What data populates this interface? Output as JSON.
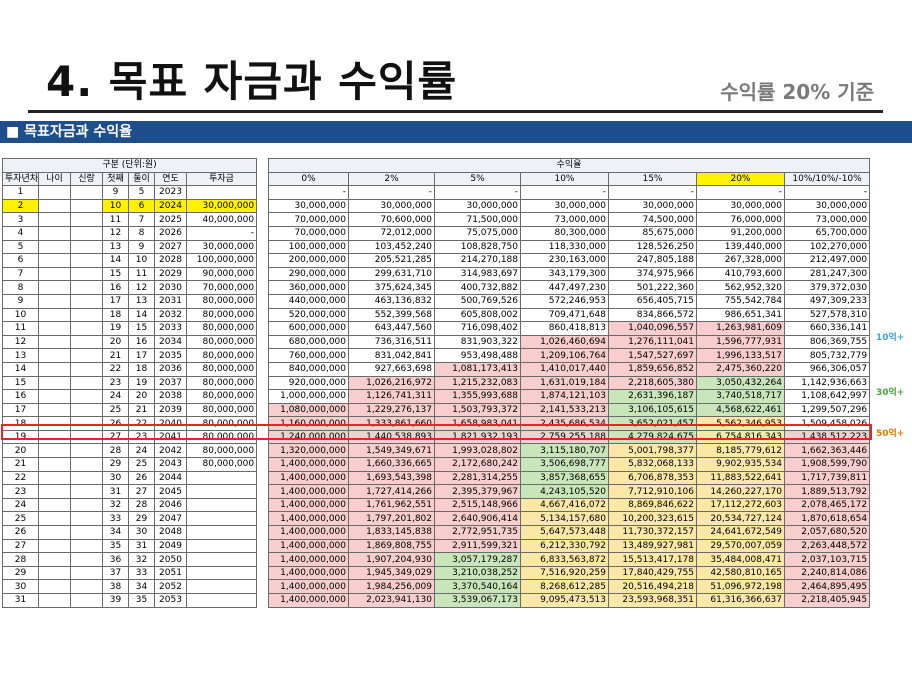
{
  "title": "4. 목표 자금과 수익률",
  "subtitle": "수익률 20% 기준",
  "section": "■ 목표자금과 수익율",
  "left_header": {
    "group": "구분 (단위:원)",
    "cols": [
      "투자년차",
      "나이",
      "신랑",
      "첫째",
      "둘이",
      "연도",
      "투자금"
    ]
  },
  "right_header": {
    "group": "수익율",
    "cols": [
      "0%",
      "2%",
      "5%",
      "10%",
      "15%",
      "20%",
      "10%/10%/-10%"
    ]
  },
  "rows": [
    {
      "n": "1",
      "a": "",
      "b": "",
      "c": "9",
      "d": "5",
      "y": "2023",
      "inv": "",
      "v": [
        "-",
        "-",
        "-",
        "-",
        "-",
        "-",
        "-"
      ]
    },
    {
      "n": "2",
      "a": "",
      "b": "",
      "c": "10",
      "d": "6",
      "y": "2024",
      "inv": "30,000,000",
      "v": [
        "30,000,000",
        "30,000,000",
        "30,000,000",
        "30,000,000",
        "30,000,000",
        "30,000,000",
        "30,000,000"
      ]
    },
    {
      "n": "3",
      "a": "",
      "b": "",
      "c": "11",
      "d": "7",
      "y": "2025",
      "inv": "40,000,000",
      "v": [
        "70,000,000",
        "70,600,000",
        "71,500,000",
        "73,000,000",
        "74,500,000",
        "76,000,000",
        "73,000,000"
      ]
    },
    {
      "n": "4",
      "a": "",
      "b": "",
      "c": "12",
      "d": "8",
      "y": "2026",
      "inv": "-",
      "v": [
        "70,000,000",
        "72,012,000",
        "75,075,000",
        "80,300,000",
        "85,675,000",
        "91,200,000",
        "65,700,000"
      ]
    },
    {
      "n": "5",
      "a": "",
      "b": "",
      "c": "13",
      "d": "9",
      "y": "2027",
      "inv": "30,000,000",
      "v": [
        "100,000,000",
        "103,452,240",
        "108,828,750",
        "118,330,000",
        "128,526,250",
        "139,440,000",
        "102,270,000"
      ]
    },
    {
      "n": "6",
      "a": "",
      "b": "",
      "c": "14",
      "d": "10",
      "y": "2028",
      "inv": "100,000,000",
      "v": [
        "200,000,000",
        "205,521,285",
        "214,270,188",
        "230,163,000",
        "247,805,188",
        "267,328,000",
        "212,497,000"
      ]
    },
    {
      "n": "7",
      "a": "",
      "b": "",
      "c": "15",
      "d": "11",
      "y": "2029",
      "inv": "90,000,000",
      "v": [
        "290,000,000",
        "299,631,710",
        "314,983,697",
        "343,179,300",
        "374,975,966",
        "410,793,600",
        "281,247,300"
      ]
    },
    {
      "n": "8",
      "a": "",
      "b": "",
      "c": "16",
      "d": "12",
      "y": "2030",
      "inv": "70,000,000",
      "v": [
        "360,000,000",
        "375,624,345",
        "400,732,882",
        "447,497,230",
        "501,222,360",
        "562,952,320",
        "379,372,030"
      ]
    },
    {
      "n": "9",
      "a": "",
      "b": "",
      "c": "17",
      "d": "13",
      "y": "2031",
      "inv": "80,000,000",
      "v": [
        "440,000,000",
        "463,136,832",
        "500,769,526",
        "572,246,953",
        "656,405,715",
        "755,542,784",
        "497,309,233"
      ]
    },
    {
      "n": "10",
      "a": "",
      "b": "",
      "c": "18",
      "d": "14",
      "y": "2032",
      "inv": "80,000,000",
      "v": [
        "520,000,000",
        "552,399,568",
        "605,808,002",
        "709,471,648",
        "834,866,572",
        "986,651,341",
        "527,578,310"
      ]
    },
    {
      "n": "11",
      "a": "",
      "b": "",
      "c": "19",
      "d": "15",
      "y": "2033",
      "inv": "80,000,000",
      "v": [
        "600,000,000",
        "643,447,560",
        "716,098,402",
        "860,418,813",
        "1,040,096,557",
        "1,263,981,609",
        "660,336,141"
      ]
    },
    {
      "n": "12",
      "a": "",
      "b": "",
      "c": "20",
      "d": "16",
      "y": "2034",
      "inv": "80,000,000",
      "v": [
        "680,000,000",
        "736,316,511",
        "831,903,322",
        "1,026,460,694",
        "1,276,111,041",
        "1,596,777,931",
        "806,369,755"
      ]
    },
    {
      "n": "13",
      "a": "",
      "b": "",
      "c": "21",
      "d": "17",
      "y": "2035",
      "inv": "80,000,000",
      "v": [
        "760,000,000",
        "831,042,841",
        "953,498,488",
        "1,209,106,764",
        "1,547,527,697",
        "1,996,133,517",
        "805,732,779"
      ]
    },
    {
      "n": "14",
      "a": "",
      "b": "",
      "c": "22",
      "d": "18",
      "y": "2036",
      "inv": "80,000,000",
      "v": [
        "840,000,000",
        "927,663,698",
        "1,081,173,413",
        "1,410,017,440",
        "1,859,656,852",
        "2,475,360,220",
        "966,306,057"
      ]
    },
    {
      "n": "15",
      "a": "",
      "b": "",
      "c": "23",
      "d": "19",
      "y": "2037",
      "inv": "80,000,000",
      "v": [
        "920,000,000",
        "1,026,216,972",
        "1,215,232,083",
        "1,631,019,184",
        "2,218,605,380",
        "3,050,432,264",
        "1,142,936,663"
      ]
    },
    {
      "n": "16",
      "a": "",
      "b": "",
      "c": "24",
      "d": "20",
      "y": "2038",
      "inv": "80,000,000",
      "v": [
        "1,000,000,000",
        "1,126,741,311",
        "1,355,993,688",
        "1,874,121,103",
        "2,631,396,187",
        "3,740,518,717",
        "1,108,642,997"
      ]
    },
    {
      "n": "17",
      "a": "",
      "b": "",
      "c": "25",
      "d": "21",
      "y": "2039",
      "inv": "80,000,000",
      "v": [
        "1,080,000,000",
        "1,229,276,137",
        "1,503,793,372",
        "2,141,533,213",
        "3,106,105,615",
        "4,568,622,461",
        "1,299,507,296"
      ]
    },
    {
      "n": "18",
      "a": "",
      "b": "",
      "c": "26",
      "d": "22",
      "y": "2040",
      "inv": "80,000,000",
      "v": [
        "1,160,000,000",
        "1,333,861,660",
        "1,658,983,041",
        "2,435,686,534",
        "3,652,021,457",
        "5,562,346,953",
        "1,509,458,026"
      ]
    },
    {
      "n": "19",
      "a": "",
      "b": "",
      "c": "27",
      "d": "23",
      "y": "2041",
      "inv": "80,000,000",
      "v": [
        "1,240,000,000",
        "1,440,538,893",
        "1,821,932,193",
        "2,759,255,188",
        "4,279,824,675",
        "6,754,816,343",
        "1,438,512,223"
      ]
    },
    {
      "n": "20",
      "a": "",
      "b": "",
      "c": "28",
      "d": "24",
      "y": "2042",
      "inv": "80,000,000",
      "v": [
        "1,320,000,000",
        "1,549,349,671",
        "1,993,028,802",
        "3,115,180,707",
        "5,001,798,377",
        "8,185,779,612",
        "1,662,363,446"
      ]
    },
    {
      "n": "21",
      "a": "",
      "b": "",
      "c": "29",
      "d": "25",
      "y": "2043",
      "inv": "80,000,000",
      "v": [
        "1,400,000,000",
        "1,660,336,665",
        "2,172,680,242",
        "3,506,698,777",
        "5,832,068,133",
        "9,902,935,534",
        "1,908,599,790"
      ]
    },
    {
      "n": "22",
      "a": "",
      "b": "",
      "c": "30",
      "d": "26",
      "y": "2044",
      "inv": "",
      "v": [
        "1,400,000,000",
        "1,693,543,398",
        "2,281,314,255",
        "3,857,368,655",
        "6,706,878,353",
        "11,883,522,641",
        "1,717,739,811"
      ]
    },
    {
      "n": "23",
      "a": "",
      "b": "",
      "c": "31",
      "d": "27",
      "y": "2045",
      "inv": "",
      "v": [
        "1,400,000,000",
        "1,727,414,266",
        "2,395,379,967",
        "4,243,105,520",
        "7,712,910,106",
        "14,260,227,170",
        "1,889,513,792"
      ]
    },
    {
      "n": "24",
      "a": "",
      "b": "",
      "c": "32",
      "d": "28",
      "y": "2046",
      "inv": "",
      "v": [
        "1,400,000,000",
        "1,761,962,551",
        "2,515,148,966",
        "4,667,416,072",
        "8,869,846,622",
        "17,112,272,603",
        "2,078,465,172"
      ]
    },
    {
      "n": "25",
      "a": "",
      "b": "",
      "c": "33",
      "d": "29",
      "y": "2047",
      "inv": "",
      "v": [
        "1,400,000,000",
        "1,797,201,802",
        "2,640,906,414",
        "5,134,157,680",
        "10,200,323,615",
        "20,534,727,124",
        "1,870,618,654"
      ]
    },
    {
      "n": "26",
      "a": "",
      "b": "",
      "c": "34",
      "d": "30",
      "y": "2048",
      "inv": "",
      "v": [
        "1,400,000,000",
        "1,833,145,838",
        "2,772,951,735",
        "5,647,573,448",
        "11,730,372,157",
        "24,641,672,549",
        "2,057,680,520"
      ]
    },
    {
      "n": "27",
      "a": "",
      "b": "",
      "c": "35",
      "d": "31",
      "y": "2049",
      "inv": "",
      "v": [
        "1,400,000,000",
        "1,869,808,755",
        "2,911,599,321",
        "6,212,330,792",
        "13,489,927,981",
        "29,570,007,059",
        "2,263,448,572"
      ]
    },
    {
      "n": "28",
      "a": "",
      "b": "",
      "c": "36",
      "d": "32",
      "y": "2050",
      "inv": "",
      "v": [
        "1,400,000,000",
        "1,907,204,930",
        "3,057,179,287",
        "6,833,563,872",
        "15,513,417,178",
        "35,484,008,471",
        "2,037,103,715"
      ]
    },
    {
      "n": "29",
      "a": "",
      "b": "",
      "c": "37",
      "d": "33",
      "y": "2051",
      "inv": "",
      "v": [
        "1,400,000,000",
        "1,945,349,029",
        "3,210,038,252",
        "7,516,920,259",
        "17,840,429,755",
        "42,580,810,165",
        "2,240,814,086"
      ]
    },
    {
      "n": "30",
      "a": "",
      "b": "",
      "c": "38",
      "d": "34",
      "y": "2052",
      "inv": "",
      "v": [
        "1,400,000,000",
        "1,984,256,009",
        "3,370,540,164",
        "8,268,612,285",
        "20,516,494,218",
        "51,096,972,198",
        "2,464,895,495"
      ]
    },
    {
      "n": "31",
      "a": "",
      "b": "",
      "c": "39",
      "d": "35",
      "y": "2053",
      "inv": "",
      "v": [
        "1,400,000,000",
        "2,023,941,130",
        "3,539,067,173",
        "9,095,473,513",
        "23,593,968,351",
        "61,316,366,637",
        "2,218,405,945"
      ]
    }
  ],
  "notes": {
    "ten": "10억+",
    "thirty": "30억+",
    "fifty": "50억+"
  },
  "colors": {
    "red": "#f8cdcd",
    "green": "#c8e6b9",
    "yellow": "#fce8a6",
    "highlight": "#fff200",
    "section_bar": "#1f4e8c",
    "marker": "#e8232a"
  }
}
